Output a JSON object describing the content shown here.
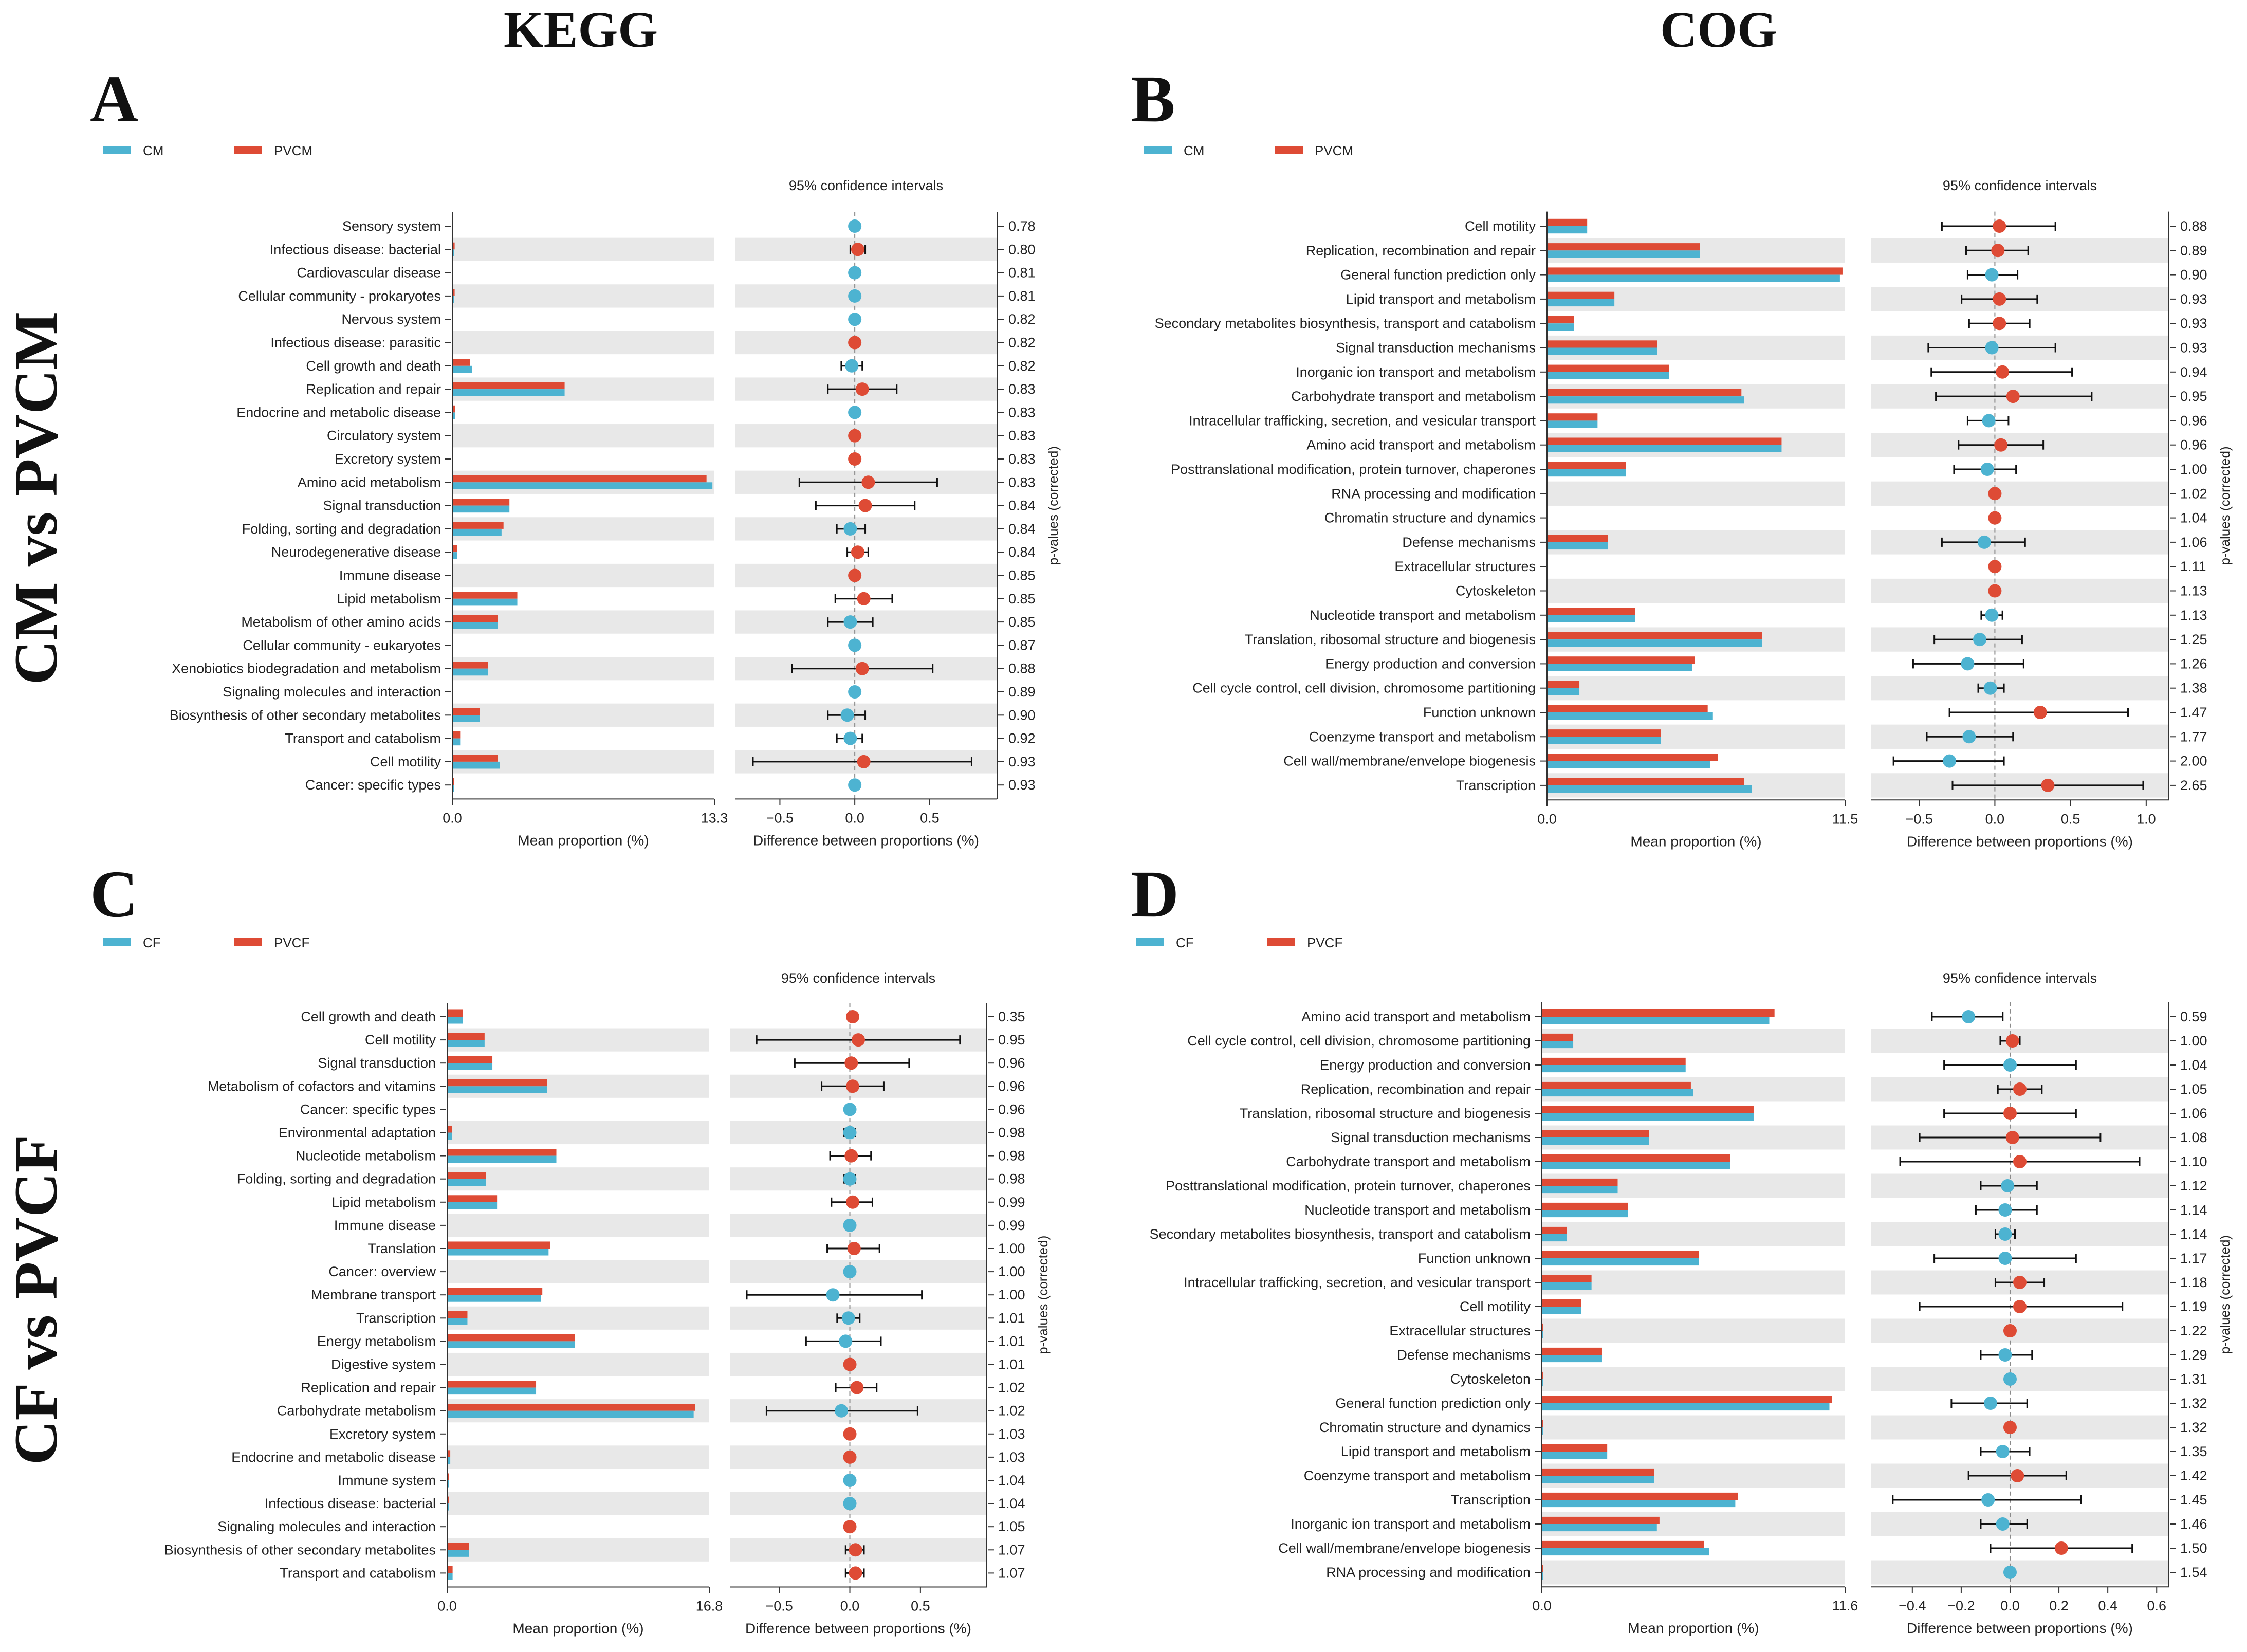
{
  "titles": {
    "kegg": "KEGG",
    "cog": "COG",
    "cm_vs_pvcm": "CM vs PVCM",
    "cf_vs_pvcf": "CF vs PVCF"
  },
  "colors": {
    "group1": "#4db3d1",
    "group2": "#de4b35",
    "stripe": "#e8e8e8"
  },
  "chart_data": [
    {
      "panel": "A",
      "type": "bar",
      "legend": [
        "CM",
        "PVCM"
      ],
      "title": "95% confidence intervals",
      "xlabel_left": "Mean proportion (%)",
      "xlabel_right": "Difference between proportions (%)",
      "ylabel_right": "p-values (corrected)",
      "xlim_left": [
        0,
        13.3
      ],
      "xticks_left": [
        "0.0",
        "13.3"
      ],
      "xlim_right": [
        -0.8,
        0.95
      ],
      "xticks_right": [
        -0.5,
        0.0,
        0.5
      ],
      "xticklabels_right": [
        "−0.5",
        "0.0",
        "0.5"
      ],
      "categories": [
        "Sensory system",
        "Infectious disease: bacterial",
        "Cardiovascular disease",
        "Cellular community - prokaryotes",
        "Nervous system",
        "Infectious disease: parasitic",
        "Cell growth and death",
        "Replication and repair",
        "Endocrine and metabolic disease",
        "Circulatory system",
        "Excretory system",
        "Amino acid metabolism",
        "Signal transduction",
        "Folding, sorting and degradation",
        "Neurodegenerative disease",
        "Immune disease",
        "Lipid metabolism",
        "Metabolism of other amino acids",
        "Cellular community - eukaryotes",
        "Xenobiotics biodegradation and metabolism",
        "Signaling molecules and interaction",
        "Biosynthesis of other secondary metabolites",
        "Transport and catabolism",
        "Cell motility",
        "Cancer: specific types"
      ],
      "group1_values": [
        0.01,
        0.1,
        0.02,
        0.1,
        0.02,
        0.01,
        1.0,
        5.7,
        0.15,
        0.02,
        0.02,
        13.2,
        2.9,
        2.5,
        0.25,
        0.03,
        3.3,
        2.3,
        0.02,
        1.8,
        0.02,
        1.4,
        0.4,
        2.4,
        0.1
      ],
      "group2_values": [
        0.01,
        0.12,
        0.02,
        0.12,
        0.02,
        0.01,
        0.9,
        5.7,
        0.15,
        0.02,
        0.02,
        12.9,
        2.9,
        2.6,
        0.25,
        0.03,
        3.3,
        2.3,
        0.02,
        1.8,
        0.02,
        1.4,
        0.4,
        2.3,
        0.1
      ],
      "diff": [
        0.0,
        0.02,
        0.0,
        0.0,
        0.0,
        0.0,
        -0.02,
        0.05,
        0.0,
        0.0,
        0.0,
        0.09,
        0.07,
        -0.03,
        0.02,
        0.0,
        0.06,
        -0.03,
        0.0,
        0.05,
        0.0,
        -0.05,
        -0.03,
        0.06,
        0.0
      ],
      "ci_low": [
        0.0,
        -0.03,
        0.0,
        0.0,
        0.0,
        0.0,
        -0.09,
        -0.18,
        0.0,
        0.0,
        0.0,
        -0.37,
        -0.26,
        -0.12,
        -0.05,
        0.0,
        -0.13,
        -0.18,
        0.0,
        -0.42,
        0.0,
        -0.18,
        -0.12,
        -0.68,
        0.0
      ],
      "ci_high": [
        0.0,
        0.07,
        0.0,
        0.0,
        0.0,
        0.0,
        0.05,
        0.28,
        0.0,
        0.0,
        0.0,
        0.55,
        0.4,
        0.07,
        0.09,
        0.0,
        0.25,
        0.12,
        0.0,
        0.52,
        0.0,
        0.07,
        0.05,
        0.78,
        0.0
      ],
      "winner": [
        1,
        2,
        1,
        1,
        1,
        2,
        1,
        2,
        1,
        2,
        2,
        2,
        2,
        1,
        2,
        2,
        2,
        1,
        1,
        2,
        1,
        1,
        1,
        2,
        1
      ],
      "pvalues": [
        "0.78",
        "0.80",
        "0.81",
        "0.81",
        "0.82",
        "0.82",
        "0.82",
        "0.83",
        "0.83",
        "0.83",
        "0.83",
        "0.83",
        "0.84",
        "0.84",
        "0.84",
        "0.85",
        "0.85",
        "0.85",
        "0.87",
        "0.88",
        "0.89",
        "0.90",
        "0.92",
        "0.93",
        "0.93"
      ]
    },
    {
      "panel": "B",
      "type": "bar",
      "legend": [
        "CM",
        "PVCM"
      ],
      "title": "95% confidence intervals",
      "xlabel_left": "Mean proportion (%)",
      "xlabel_right": "Difference between proportions (%)",
      "ylabel_right": "p-values (corrected)",
      "xlim_left": [
        0,
        11.5
      ],
      "xticks_left": [
        "0.0",
        "11.5"
      ],
      "xlim_right": [
        -0.82,
        1.15
      ],
      "xticks_right": [
        -0.5,
        0.0,
        0.5,
        1.0
      ],
      "xticklabels_right": [
        "−0.5",
        "0.0",
        "0.5",
        "1.0"
      ],
      "categories": [
        "Cell motility",
        "Replication, recombination and repair",
        "General function prediction only",
        "Lipid transport and metabolism",
        "Secondary metabolites biosynthesis, transport and catabolism",
        "Signal transduction mechanisms",
        "Inorganic ion transport and metabolism",
        "Carbohydrate transport and metabolism",
        "Intracellular trafficking, secretion, and vesicular transport",
        "Amino acid transport and metabolism",
        "Posttranslational modification, protein turnover, chaperones",
        "RNA processing and modification",
        "Chromatin structure and dynamics",
        "Defense mechanisms",
        "Extracellular structures",
        "Cytoskeleton",
        "Nucleotide transport and metabolism",
        "Translation, ribosomal structure and biogenesis",
        "Energy production and conversion",
        "Cell cycle control, cell division, chromosome partitioning",
        "Function unknown",
        "Coenzyme transport and metabolism",
        "Cell wall/membrane/envelope biogenesis",
        "Transcription"
      ],
      "group1_values": [
        1.55,
        5.9,
        11.3,
        2.6,
        1.05,
        4.25,
        4.7,
        7.6,
        1.95,
        9.05,
        3.05,
        0.01,
        0.03,
        2.35,
        0.01,
        0.02,
        3.4,
        8.3,
        5.6,
        1.25,
        6.4,
        4.4,
        6.3,
        7.9
      ],
      "group2_values": [
        1.55,
        5.9,
        11.4,
        2.6,
        1.05,
        4.25,
        4.7,
        7.5,
        1.95,
        9.05,
        3.05,
        0.01,
        0.03,
        2.35,
        0.01,
        0.02,
        3.4,
        8.3,
        5.7,
        1.25,
        6.2,
        4.4,
        6.6,
        7.6
      ],
      "diff": [
        0.03,
        0.02,
        -0.02,
        0.03,
        0.03,
        -0.02,
        0.05,
        0.12,
        -0.04,
        0.04,
        -0.05,
        0.0,
        0.0,
        -0.07,
        0.0,
        0.0,
        -0.02,
        -0.1,
        -0.18,
        -0.03,
        0.3,
        -0.17,
        -0.3,
        0.35
      ],
      "ci_low": [
        -0.35,
        -0.19,
        -0.18,
        -0.22,
        -0.17,
        -0.44,
        -0.42,
        -0.39,
        -0.18,
        -0.24,
        -0.27,
        0.0,
        0.0,
        -0.35,
        0.0,
        0.0,
        -0.09,
        -0.4,
        -0.54,
        -0.11,
        -0.3,
        -0.45,
        -0.67,
        -0.28
      ],
      "ci_high": [
        0.4,
        0.22,
        0.15,
        0.28,
        0.23,
        0.4,
        0.51,
        0.64,
        0.09,
        0.32,
        0.14,
        0.0,
        0.0,
        0.2,
        0.0,
        0.0,
        0.05,
        0.18,
        0.19,
        0.06,
        0.88,
        0.12,
        0.06,
        0.98
      ],
      "winner": [
        2,
        2,
        1,
        2,
        2,
        1,
        2,
        2,
        1,
        2,
        1,
        2,
        2,
        1,
        2,
        2,
        1,
        1,
        1,
        1,
        2,
        1,
        1,
        2
      ],
      "pvalues": [
        "0.88",
        "0.89",
        "0.90",
        "0.93",
        "0.93",
        "0.93",
        "0.94",
        "0.95",
        "0.96",
        "0.96",
        "1.00",
        "1.02",
        "1.04",
        "1.06",
        "1.11",
        "1.13",
        "1.13",
        "1.25",
        "1.26",
        "1.38",
        "1.47",
        "1.77",
        "2.00",
        "2.65"
      ]
    },
    {
      "panel": "C",
      "type": "bar",
      "legend": [
        "CF",
        "PVCF"
      ],
      "title": "95% confidence intervals",
      "xlabel_left": "Mean proportion (%)",
      "xlabel_right": "Difference between proportions (%)",
      "ylabel_right": "p-values (corrected)",
      "xlim_left": [
        0,
        16.8
      ],
      "xticks_left": [
        "0.0",
        "16.8"
      ],
      "xlim_right": [
        -0.85,
        0.97
      ],
      "xticks_right": [
        -0.5,
        0.0,
        0.5
      ],
      "xticklabels_right": [
        "−0.5",
        "0.0",
        "0.5"
      ],
      "categories": [
        "Cell growth and death",
        "Cell motility",
        "Signal transduction",
        "Metabolism of cofactors and vitamins",
        "Cancer: specific types",
        "Environmental adaptation",
        "Nucleotide metabolism",
        "Folding, sorting and degradation",
        "Lipid metabolism",
        "Immune disease",
        "Translation",
        "Cancer: overview",
        "Membrane transport",
        "Transcription",
        "Energy metabolism",
        "Digestive system",
        "Replication and repair",
        "Carbohydrate metabolism",
        "Excretory system",
        "Endocrine and metabolic disease",
        "Immune system",
        "Infectious disease: bacterial",
        "Signaling molecules and interaction",
        "Biosynthesis of other secondary metabolites",
        "Transport and catabolism"
      ],
      "group1_values": [
        1.0,
        2.4,
        2.9,
        6.4,
        0.03,
        0.3,
        7.0,
        2.5,
        3.2,
        0.02,
        6.5,
        0.03,
        6.0,
        1.3,
        8.2,
        0.02,
        5.7,
        15.8,
        0.02,
        0.2,
        0.1,
        0.1,
        0.02,
        1.4,
        0.35
      ],
      "group2_values": [
        1.0,
        2.4,
        2.9,
        6.4,
        0.03,
        0.3,
        7.0,
        2.5,
        3.2,
        0.02,
        6.6,
        0.03,
        6.1,
        1.3,
        8.2,
        0.02,
        5.7,
        15.9,
        0.02,
        0.2,
        0.1,
        0.1,
        0.02,
        1.4,
        0.35
      ],
      "diff": [
        0.02,
        0.06,
        0.01,
        0.02,
        0.0,
        0.0,
        0.01,
        0.0,
        0.02,
        0.0,
        0.03,
        0.0,
        -0.12,
        -0.01,
        -0.03,
        0.0,
        0.05,
        -0.06,
        0.0,
        0.0,
        0.0,
        0.0,
        0.0,
        0.04,
        0.04
      ],
      "ci_low": [
        0.0,
        -0.66,
        -0.39,
        -0.2,
        0.0,
        -0.04,
        -0.14,
        -0.04,
        -0.13,
        0.0,
        -0.16,
        0.0,
        -0.73,
        -0.09,
        -0.31,
        0.0,
        -0.1,
        -0.59,
        0.0,
        0.0,
        0.0,
        0.0,
        0.0,
        -0.03,
        -0.03
      ],
      "ci_high": [
        0.0,
        0.78,
        0.42,
        0.24,
        0.0,
        0.04,
        0.15,
        0.04,
        0.16,
        0.0,
        0.21,
        0.0,
        0.51,
        0.07,
        0.22,
        0.0,
        0.19,
        0.48,
        0.0,
        0.0,
        0.0,
        0.0,
        0.0,
        0.1,
        0.1
      ],
      "winner": [
        2,
        2,
        2,
        2,
        1,
        1,
        2,
        1,
        2,
        1,
        2,
        1,
        1,
        1,
        1,
        2,
        2,
        1,
        2,
        2,
        1,
        1,
        2,
        2,
        2
      ],
      "pvalues": [
        "0.35",
        "0.95",
        "0.96",
        "0.96",
        "0.96",
        "0.98",
        "0.98",
        "0.98",
        "0.99",
        "0.99",
        "1.00",
        "1.00",
        "1.00",
        "1.01",
        "1.01",
        "1.01",
        "1.02",
        "1.02",
        "1.03",
        "1.03",
        "1.04",
        "1.04",
        "1.05",
        "1.07",
        "1.07"
      ]
    },
    {
      "panel": "D",
      "type": "bar",
      "legend": [
        "CF",
        "PVCF"
      ],
      "title": "95% confidence intervals",
      "xlabel_left": "Mean proportion (%)",
      "xlabel_right": "Difference between proportions (%)",
      "ylabel_right": "p-values (corrected)",
      "xlim_left": [
        0,
        11.6
      ],
      "xticks_left": [
        "0.0",
        "11.6"
      ],
      "xlim_right": [
        -0.57,
        0.65
      ],
      "xticks_right": [
        -0.4,
        -0.2,
        0.0,
        0.2,
        0.4,
        0.6
      ],
      "xticklabels_right": [
        "−0.4",
        "−0.2",
        "0.0",
        "0.2",
        "0.4",
        "0.6"
      ],
      "categories": [
        "Amino acid transport and metabolism",
        "Cell cycle control, cell division, chromosome partitioning",
        "Energy production and conversion",
        "Replication, recombination and repair",
        "Translation, ribosomal structure and biogenesis",
        "Signal transduction mechanisms",
        "Carbohydrate transport and metabolism",
        "Posttranslational modification, protein turnover, chaperones",
        "Nucleotide transport and metabolism",
        "Secondary metabolites biosynthesis, transport and catabolism",
        "Function unknown",
        "Intracellular trafficking, secretion, and vesicular transport",
        "Cell motility",
        "Extracellular structures",
        "Defense mechanisms",
        "Cytoskeleton",
        "General function prediction only",
        "Chromatin structure and dynamics",
        "Lipid transport and metabolism",
        "Coenzyme transport and metabolism",
        "Transcription",
        "Inorganic ion transport and metabolism",
        "Cell wall/membrane/envelope biogenesis",
        "RNA processing and modification"
      ],
      "group1_values": [
        8.7,
        1.2,
        5.5,
        5.8,
        8.1,
        4.1,
        7.2,
        2.9,
        3.3,
        0.95,
        6.0,
        1.9,
        1.5,
        0.01,
        2.3,
        0.02,
        11.0,
        0.02,
        2.5,
        4.3,
        7.4,
        4.4,
        6.4,
        0.01
      ],
      "group2_values": [
        8.9,
        1.2,
        5.5,
        5.7,
        8.1,
        4.1,
        7.2,
        2.9,
        3.3,
        0.95,
        6.0,
        1.9,
        1.5,
        0.01,
        2.3,
        0.02,
        11.1,
        0.02,
        2.5,
        4.3,
        7.5,
        4.5,
        6.2,
        0.01
      ],
      "diff": [
        -0.17,
        0.01,
        0.0,
        0.04,
        0.0,
        0.01,
        0.04,
        -0.01,
        -0.02,
        -0.02,
        -0.02,
        0.04,
        0.04,
        0.0,
        -0.02,
        0.0,
        -0.08,
        0.0,
        -0.03,
        0.03,
        -0.09,
        -0.03,
        0.21,
        0.0
      ],
      "ci_low": [
        -0.32,
        -0.04,
        -0.27,
        -0.05,
        -0.27,
        -0.37,
        -0.45,
        -0.12,
        -0.14,
        -0.06,
        -0.31,
        -0.06,
        -0.37,
        0.0,
        -0.12,
        0.0,
        -0.24,
        0.0,
        -0.12,
        -0.17,
        -0.48,
        -0.12,
        -0.08,
        0.0
      ],
      "ci_high": [
        -0.03,
        0.04,
        0.27,
        0.13,
        0.27,
        0.37,
        0.53,
        0.11,
        0.11,
        0.02,
        0.27,
        0.14,
        0.46,
        0.0,
        0.09,
        0.0,
        0.07,
        0.0,
        0.08,
        0.23,
        0.29,
        0.07,
        0.5,
        0.0
      ],
      "winner": [
        1,
        2,
        1,
        2,
        2,
        2,
        2,
        1,
        1,
        1,
        1,
        2,
        2,
        2,
        1,
        1,
        1,
        2,
        1,
        2,
        1,
        1,
        2,
        1
      ],
      "pvalues": [
        "0.59",
        "1.00",
        "1.04",
        "1.05",
        "1.06",
        "1.08",
        "1.10",
        "1.12",
        "1.14",
        "1.14",
        "1.17",
        "1.18",
        "1.19",
        "1.22",
        "1.29",
        "1.31",
        "1.32",
        "1.32",
        "1.35",
        "1.42",
        "1.45",
        "1.46",
        "1.50",
        "1.54"
      ]
    }
  ]
}
